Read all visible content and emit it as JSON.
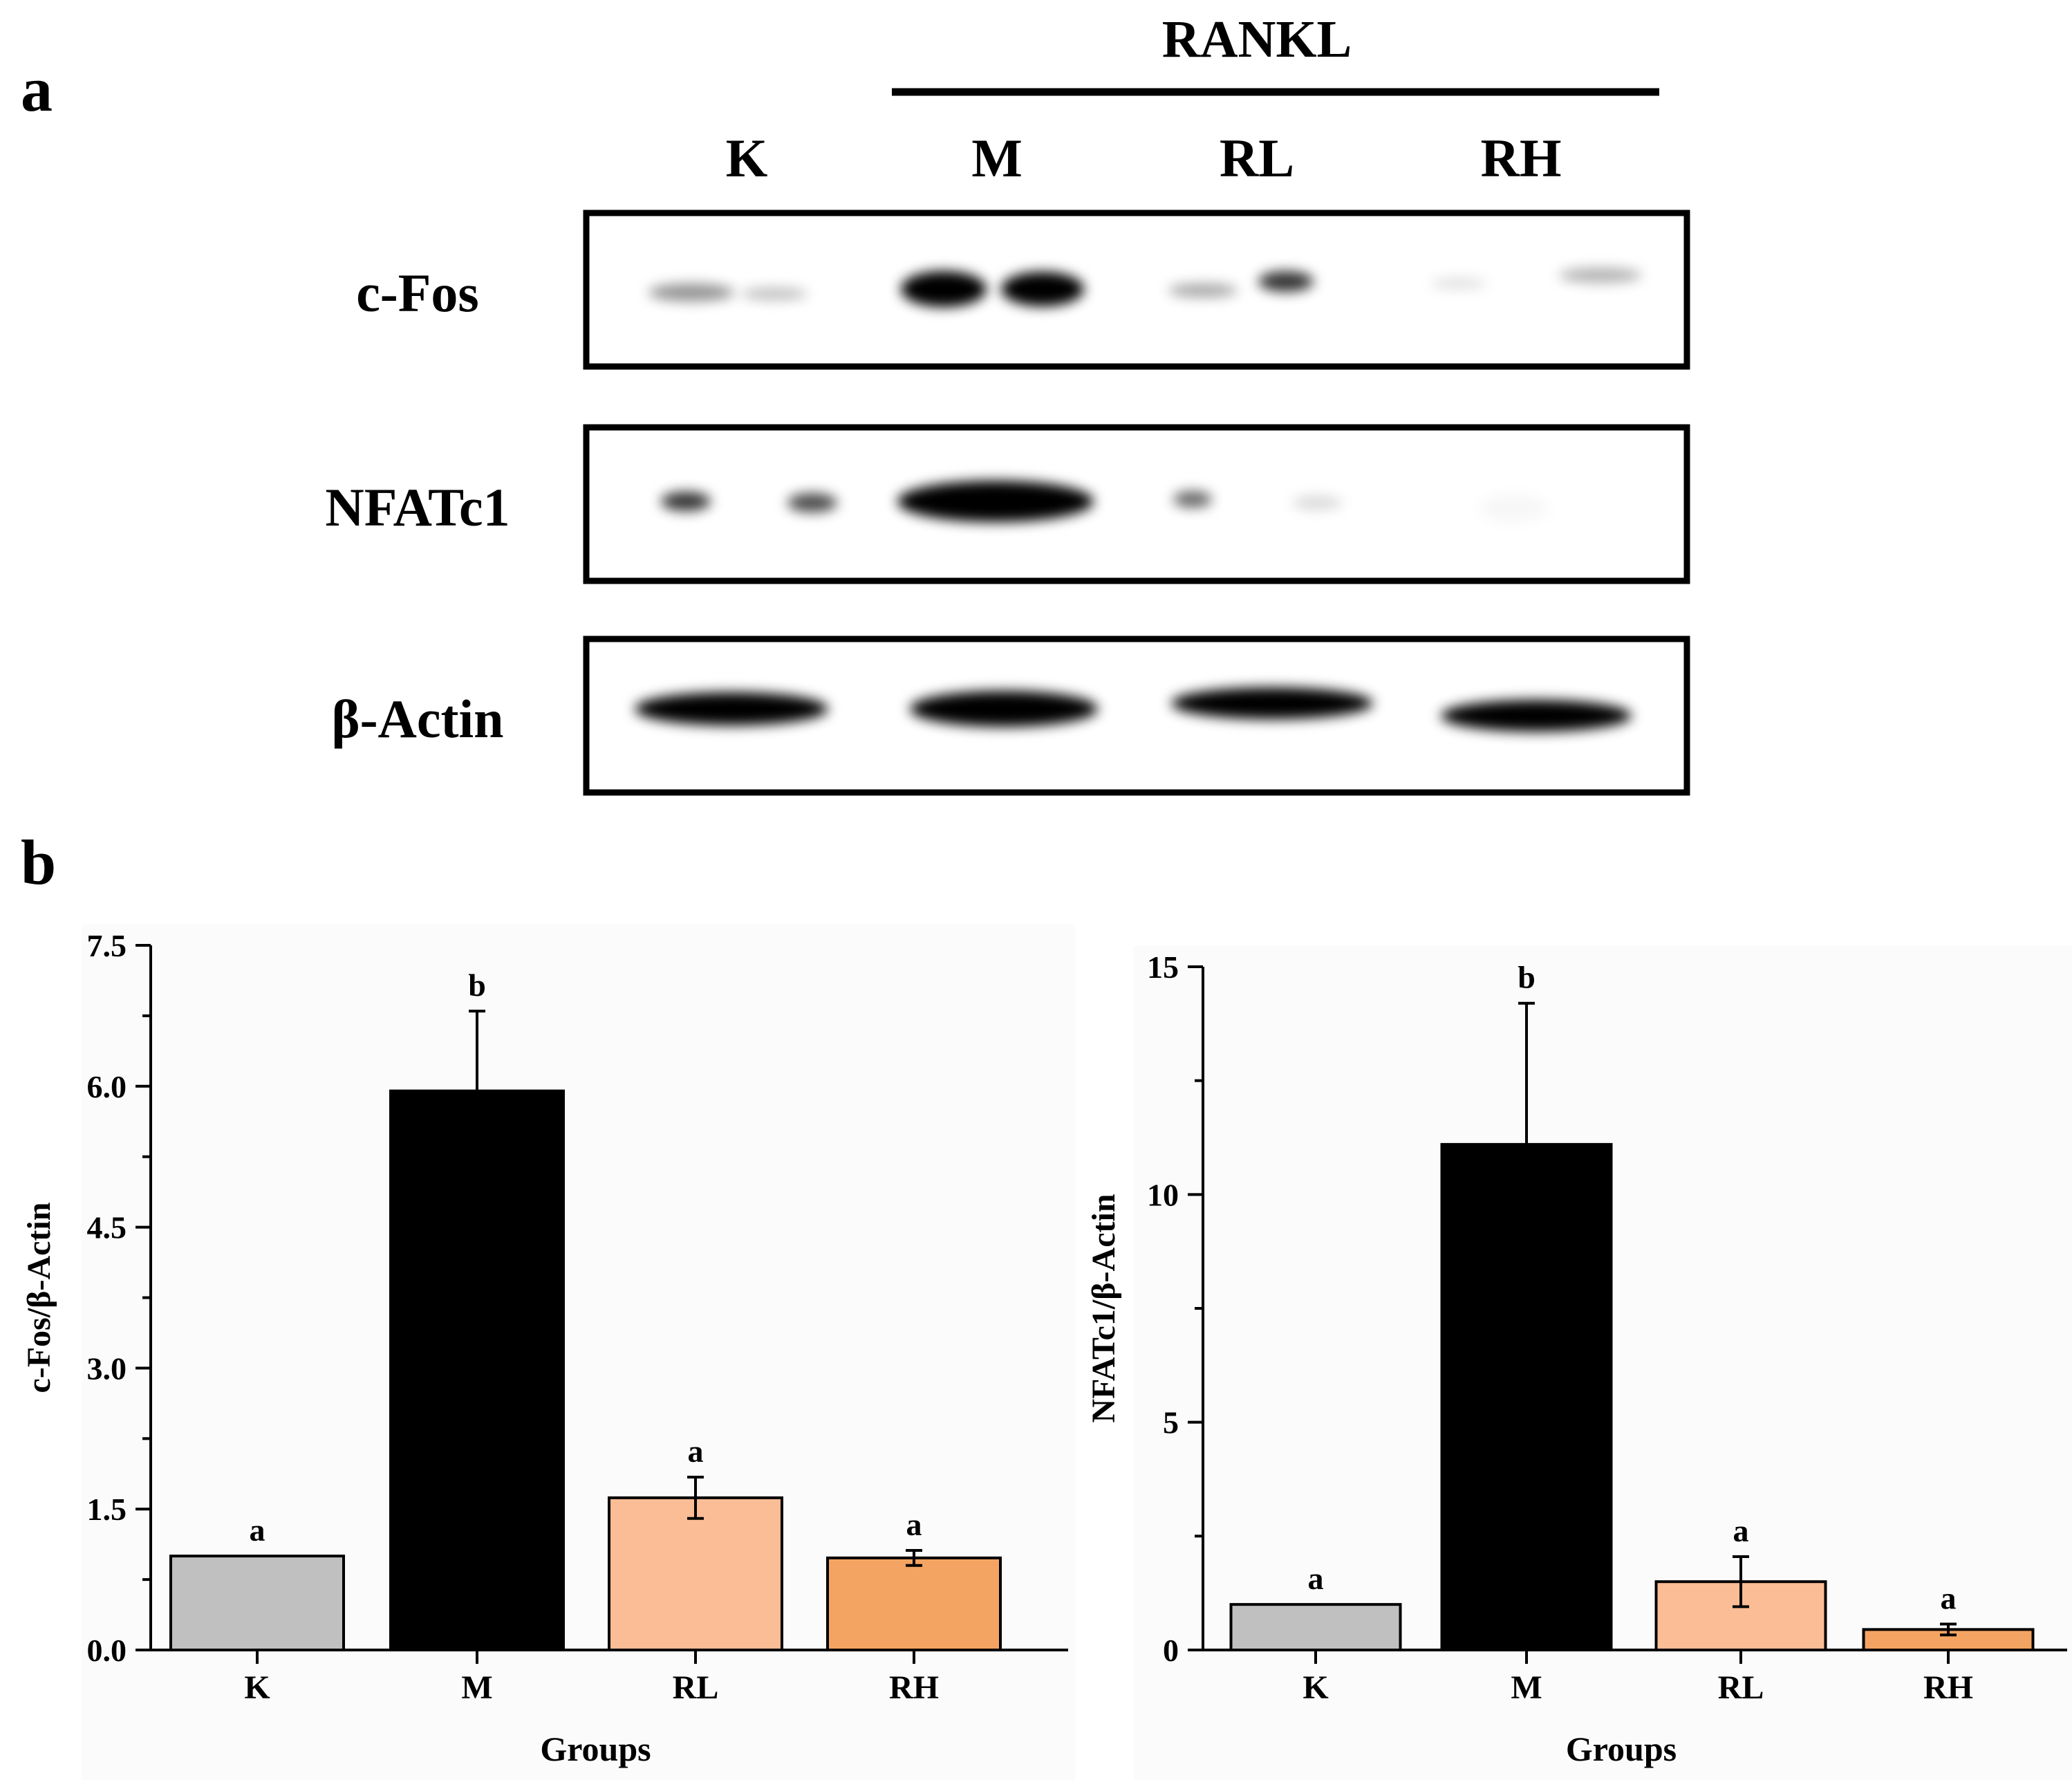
{
  "panels": {
    "a_label": "a",
    "b_label": "b"
  },
  "blot": {
    "treatment_label": "RANKL",
    "lanes": [
      "K",
      "M",
      "RL",
      "RH"
    ],
    "rows": [
      {
        "label": "c-Fos",
        "band_intensity": [
          0.35,
          1.0,
          0.45,
          0.2
        ]
      },
      {
        "label": "NFATc1",
        "band_intensity": [
          0.45,
          1.0,
          0.25,
          0.03
        ]
      },
      {
        "label": "β-Actin",
        "band_intensity": [
          0.95,
          0.95,
          0.9,
          0.9
        ]
      }
    ]
  },
  "chart_data": [
    {
      "type": "bar",
      "categories": [
        "K",
        "M",
        "RL",
        "RH"
      ],
      "values": [
        1.0,
        5.95,
        1.62,
        0.98
      ],
      "errors": [
        0,
        0.85,
        0.22,
        0.08
      ],
      "significance": [
        "a",
        "b",
        "a",
        "a"
      ],
      "colors": [
        "#c0c0c0",
        "#000000",
        "#fbbd96",
        "#f4a462"
      ],
      "xlabel": "Groups",
      "ylabel": "c-Fos/β-Actin",
      "ylim": [
        0,
        7.5
      ],
      "yticks": [
        "0.0",
        "1.5",
        "3.0",
        "4.5",
        "6.0",
        "7.5"
      ]
    },
    {
      "type": "bar",
      "categories": [
        "K",
        "M",
        "RL",
        "RH"
      ],
      "values": [
        1.0,
        11.1,
        1.5,
        0.45
      ],
      "errors": [
        0,
        3.1,
        0.55,
        0.12
      ],
      "significance": [
        "a",
        "b",
        "a",
        "a"
      ],
      "colors": [
        "#c0c0c0",
        "#000000",
        "#fbbd96",
        "#f4a462"
      ],
      "xlabel": "Groups",
      "ylabel": "NFATc1/β-Actin",
      "ylim": [
        0,
        15
      ],
      "yticks": [
        "0",
        "5",
        "10",
        "15"
      ]
    }
  ]
}
